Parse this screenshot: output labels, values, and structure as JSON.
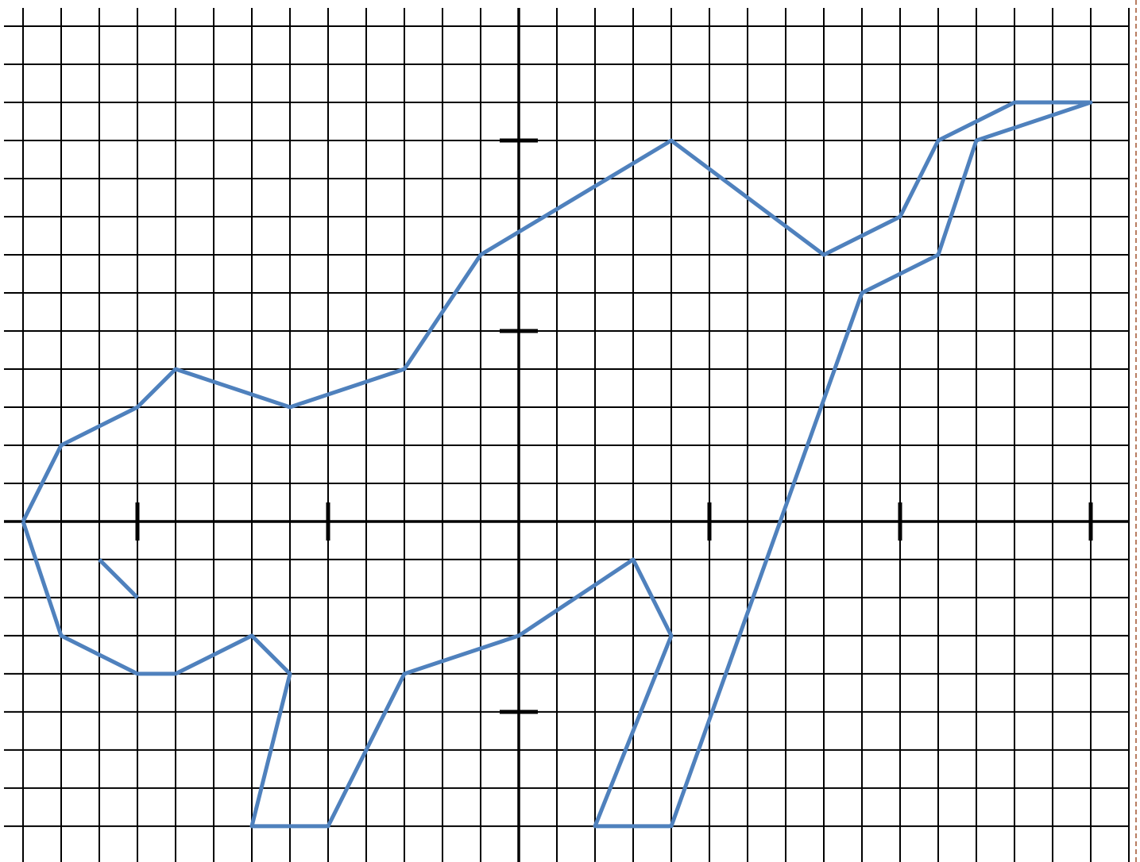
{
  "chart_data": {
    "type": "line",
    "xlim": [
      -13.5,
      16
    ],
    "ylim": [
      -8.94,
      13.48
    ],
    "xgrid": [
      -13,
      -12,
      -11,
      -10,
      -9,
      -8,
      -7,
      -6,
      -5,
      -4,
      -3,
      -2,
      -1,
      0,
      1,
      2,
      3,
      4,
      5,
      6,
      7,
      8,
      9,
      10,
      11,
      12,
      13,
      14,
      15,
      16
    ],
    "ygrid": [
      -8,
      -7,
      -6,
      -5,
      -4,
      -3,
      -2,
      -1,
      0,
      1,
      2,
      3,
      4,
      5,
      6,
      7,
      8,
      9,
      10,
      11,
      12,
      13
    ],
    "xticks": [
      -10,
      -5,
      5,
      10,
      15
    ],
    "yticks": [
      -5,
      5,
      10
    ],
    "grid": true,
    "series": [
      {
        "color": "#4f81bd",
        "x": [
          -13,
          -12,
          -10,
          -9,
          -6,
          -3,
          -1,
          4,
          8,
          10,
          11,
          13,
          15,
          12,
          11,
          9,
          4,
          2,
          4,
          3,
          0,
          -3,
          -5,
          -7,
          -6,
          -7,
          -9,
          -10,
          -12,
          -13
        ],
        "values": [
          0,
          2,
          3,
          4,
          3,
          4,
          7,
          10,
          7,
          8,
          10,
          11,
          11,
          10,
          7,
          6,
          -8,
          -8,
          -3,
          -1,
          -3,
          -4,
          -8,
          -8,
          -4,
          -3,
          -4,
          -4,
          -3,
          0
        ]
      },
      {
        "color": "#4f81bd",
        "x": [
          -11,
          -10
        ],
        "values": [
          -1,
          -2
        ]
      }
    ]
  }
}
